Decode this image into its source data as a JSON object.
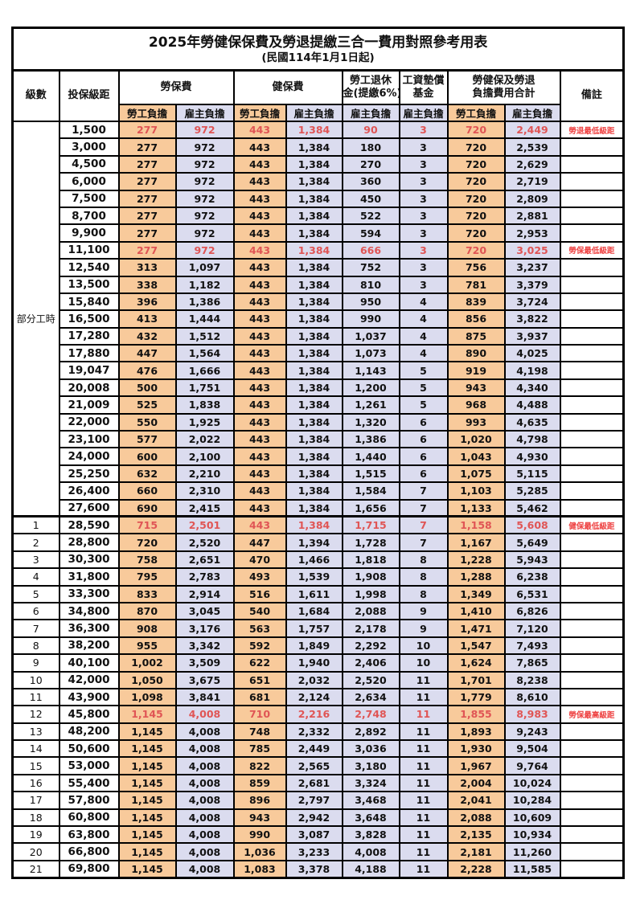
{
  "title": "2025年勞健保保費及勞退提繳三合一費用對照參考用表",
  "subtitle": "(民國114年1月1日起)",
  "header": {
    "level": "級數",
    "bracket": "投保級距",
    "labor_ins": "勞保費",
    "health_ins": "健保費",
    "pension_line1": "勞工退休",
    "pension_line2": "金(提繳6%)",
    "arrears_line1": "工資墊償",
    "arrears_line2": "基金",
    "total_line1": "勞健保及勞退",
    "total_line2": "負擔費用合計",
    "remark": "備註",
    "employee": "勞工負擔",
    "employer": "雇主負擔"
  },
  "part_time_label": "部分工時",
  "colors": {
    "employee_bg": "#F8CA9B",
    "employer_bg": "#DBDCEF",
    "highlight_red": "#E05555",
    "remark_red": "#EE4040"
  },
  "rows": [
    {
      "level": "",
      "bracket": "1,500",
      "values": [
        "277",
        "972",
        "443",
        "1,384",
        "90",
        "3",
        "720",
        "2,449"
      ],
      "remark": "勞退最低級距",
      "red": true
    },
    {
      "level": "",
      "bracket": "3,000",
      "values": [
        "277",
        "972",
        "443",
        "1,384",
        "180",
        "3",
        "720",
        "2,539"
      ],
      "remark": ""
    },
    {
      "level": "",
      "bracket": "4,500",
      "values": [
        "277",
        "972",
        "443",
        "1,384",
        "270",
        "3",
        "720",
        "2,629"
      ],
      "remark": ""
    },
    {
      "level": "",
      "bracket": "6,000",
      "values": [
        "277",
        "972",
        "443",
        "1,384",
        "360",
        "3",
        "720",
        "2,719"
      ],
      "remark": ""
    },
    {
      "level": "",
      "bracket": "7,500",
      "values": [
        "277",
        "972",
        "443",
        "1,384",
        "450",
        "3",
        "720",
        "2,809"
      ],
      "remark": ""
    },
    {
      "level": "",
      "bracket": "8,700",
      "values": [
        "277",
        "972",
        "443",
        "1,384",
        "522",
        "3",
        "720",
        "2,881"
      ],
      "remark": ""
    },
    {
      "level": "",
      "bracket": "9,900",
      "values": [
        "277",
        "972",
        "443",
        "1,384",
        "594",
        "3",
        "720",
        "2,953"
      ],
      "remark": ""
    },
    {
      "level": "",
      "bracket": "11,100",
      "values": [
        "277",
        "972",
        "443",
        "1,384",
        "666",
        "3",
        "720",
        "3,025"
      ],
      "remark": "勞保最低級距",
      "red": true
    },
    {
      "level": "",
      "bracket": "12,540",
      "values": [
        "313",
        "1,097",
        "443",
        "1,384",
        "752",
        "3",
        "756",
        "3,237"
      ],
      "remark": ""
    },
    {
      "level": "",
      "bracket": "13,500",
      "values": [
        "338",
        "1,182",
        "443",
        "1,384",
        "810",
        "3",
        "781",
        "3,379"
      ],
      "remark": ""
    },
    {
      "level": "",
      "bracket": "15,840",
      "values": [
        "396",
        "1,386",
        "443",
        "1,384",
        "950",
        "4",
        "839",
        "3,724"
      ],
      "remark": ""
    },
    {
      "level": "",
      "bracket": "16,500",
      "values": [
        "413",
        "1,444",
        "443",
        "1,384",
        "990",
        "4",
        "856",
        "3,822"
      ],
      "remark": ""
    },
    {
      "level": "",
      "bracket": "17,280",
      "values": [
        "432",
        "1,512",
        "443",
        "1,384",
        "1,037",
        "4",
        "875",
        "3,937"
      ],
      "remark": ""
    },
    {
      "level": "",
      "bracket": "17,880",
      "values": [
        "447",
        "1,564",
        "443",
        "1,384",
        "1,073",
        "4",
        "890",
        "4,025"
      ],
      "remark": ""
    },
    {
      "level": "",
      "bracket": "19,047",
      "values": [
        "476",
        "1,666",
        "443",
        "1,384",
        "1,143",
        "5",
        "919",
        "4,198"
      ],
      "remark": ""
    },
    {
      "level": "",
      "bracket": "20,008",
      "values": [
        "500",
        "1,751",
        "443",
        "1,384",
        "1,200",
        "5",
        "943",
        "4,340"
      ],
      "remark": ""
    },
    {
      "level": "",
      "bracket": "21,009",
      "values": [
        "525",
        "1,838",
        "443",
        "1,384",
        "1,261",
        "5",
        "968",
        "4,488"
      ],
      "remark": ""
    },
    {
      "level": "",
      "bracket": "22,000",
      "values": [
        "550",
        "1,925",
        "443",
        "1,384",
        "1,320",
        "6",
        "993",
        "4,635"
      ],
      "remark": ""
    },
    {
      "level": "",
      "bracket": "23,100",
      "values": [
        "577",
        "2,022",
        "443",
        "1,384",
        "1,386",
        "6",
        "1,020",
        "4,798"
      ],
      "remark": ""
    },
    {
      "level": "",
      "bracket": "24,000",
      "values": [
        "600",
        "2,100",
        "443",
        "1,384",
        "1,440",
        "6",
        "1,043",
        "4,930"
      ],
      "remark": ""
    },
    {
      "level": "",
      "bracket": "25,250",
      "values": [
        "632",
        "2,210",
        "443",
        "1,384",
        "1,515",
        "6",
        "1,075",
        "5,115"
      ],
      "remark": ""
    },
    {
      "level": "",
      "bracket": "26,400",
      "values": [
        "660",
        "2,310",
        "443",
        "1,384",
        "1,584",
        "7",
        "1,103",
        "5,285"
      ],
      "remark": ""
    },
    {
      "level": "",
      "bracket": "27,600",
      "values": [
        "690",
        "2,415",
        "443",
        "1,384",
        "1,656",
        "7",
        "1,133",
        "5,462"
      ],
      "remark": ""
    },
    {
      "level": "1",
      "bracket": "28,590",
      "values": [
        "715",
        "2,501",
        "443",
        "1,384",
        "1,715",
        "7",
        "1,158",
        "5,608"
      ],
      "remark": "健保最低級距",
      "red": true
    },
    {
      "level": "2",
      "bracket": "28,800",
      "values": [
        "720",
        "2,520",
        "447",
        "1,394",
        "1,728",
        "7",
        "1,167",
        "5,649"
      ],
      "remark": ""
    },
    {
      "level": "3",
      "bracket": "30,300",
      "values": [
        "758",
        "2,651",
        "470",
        "1,466",
        "1,818",
        "8",
        "1,228",
        "5,943"
      ],
      "remark": ""
    },
    {
      "level": "4",
      "bracket": "31,800",
      "values": [
        "795",
        "2,783",
        "493",
        "1,539",
        "1,908",
        "8",
        "1,288",
        "6,238"
      ],
      "remark": ""
    },
    {
      "level": "5",
      "bracket": "33,300",
      "values": [
        "833",
        "2,914",
        "516",
        "1,611",
        "1,998",
        "8",
        "1,349",
        "6,531"
      ],
      "remark": ""
    },
    {
      "level": "6",
      "bracket": "34,800",
      "values": [
        "870",
        "3,045",
        "540",
        "1,684",
        "2,088",
        "9",
        "1,410",
        "6,826"
      ],
      "remark": ""
    },
    {
      "level": "7",
      "bracket": "36,300",
      "values": [
        "908",
        "3,176",
        "563",
        "1,757",
        "2,178",
        "9",
        "1,471",
        "7,120"
      ],
      "remark": ""
    },
    {
      "level": "8",
      "bracket": "38,200",
      "values": [
        "955",
        "3,342",
        "592",
        "1,849",
        "2,292",
        "10",
        "1,547",
        "7,493"
      ],
      "remark": ""
    },
    {
      "level": "9",
      "bracket": "40,100",
      "values": [
        "1,002",
        "3,509",
        "622",
        "1,940",
        "2,406",
        "10",
        "1,624",
        "7,865"
      ],
      "remark": ""
    },
    {
      "level": "10",
      "bracket": "42,000",
      "values": [
        "1,050",
        "3,675",
        "651",
        "2,032",
        "2,520",
        "11",
        "1,701",
        "8,238"
      ],
      "remark": ""
    },
    {
      "level": "11",
      "bracket": "43,900",
      "values": [
        "1,098",
        "3,841",
        "681",
        "2,124",
        "2,634",
        "11",
        "1,779",
        "8,610"
      ],
      "remark": ""
    },
    {
      "level": "12",
      "bracket": "45,800",
      "values": [
        "1,145",
        "4,008",
        "710",
        "2,216",
        "2,748",
        "11",
        "1,855",
        "8,983"
      ],
      "remark": "勞保最高級距",
      "red": true
    },
    {
      "level": "13",
      "bracket": "48,200",
      "values": [
        "1,145",
        "4,008",
        "748",
        "2,332",
        "2,892",
        "11",
        "1,893",
        "9,243"
      ],
      "remark": ""
    },
    {
      "level": "14",
      "bracket": "50,600",
      "values": [
        "1,145",
        "4,008",
        "785",
        "2,449",
        "3,036",
        "11",
        "1,930",
        "9,504"
      ],
      "remark": ""
    },
    {
      "level": "15",
      "bracket": "53,000",
      "values": [
        "1,145",
        "4,008",
        "822",
        "2,565",
        "3,180",
        "11",
        "1,967",
        "9,764"
      ],
      "remark": ""
    },
    {
      "level": "16",
      "bracket": "55,400",
      "values": [
        "1,145",
        "4,008",
        "859",
        "2,681",
        "3,324",
        "11",
        "2,004",
        "10,024"
      ],
      "remark": ""
    },
    {
      "level": "17",
      "bracket": "57,800",
      "values": [
        "1,145",
        "4,008",
        "896",
        "2,797",
        "3,468",
        "11",
        "2,041",
        "10,284"
      ],
      "remark": ""
    },
    {
      "level": "18",
      "bracket": "60,800",
      "values": [
        "1,145",
        "4,008",
        "943",
        "2,942",
        "3,648",
        "11",
        "2,088",
        "10,609"
      ],
      "remark": ""
    },
    {
      "level": "19",
      "bracket": "63,800",
      "values": [
        "1,145",
        "4,008",
        "990",
        "3,087",
        "3,828",
        "11",
        "2,135",
        "10,934"
      ],
      "remark": ""
    },
    {
      "level": "20",
      "bracket": "66,800",
      "values": [
        "1,145",
        "4,008",
        "1,036",
        "3,233",
        "4,008",
        "11",
        "2,181",
        "11,260"
      ],
      "remark": ""
    },
    {
      "level": "21",
      "bracket": "69,800",
      "values": [
        "1,145",
        "4,008",
        "1,083",
        "3,378",
        "4,188",
        "11",
        "2,228",
        "11,585"
      ],
      "remark": ""
    }
  ]
}
